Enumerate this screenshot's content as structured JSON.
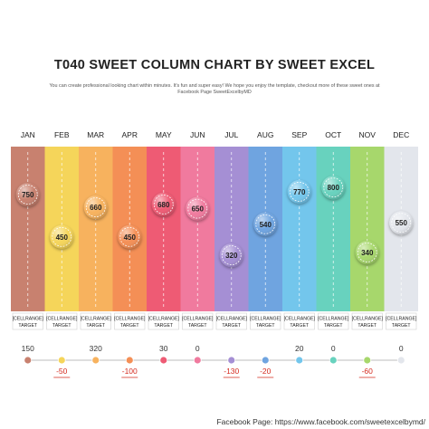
{
  "title": "T040 SWEET COLUMN CHART BY SWEET EXCEL",
  "subtitle_line1": "You can create professional looking chart within minutes. It's fun and super easy! We hope you enjoy the template, checkout more of these sweet ones at",
  "subtitle_line2": "Facebook Page SweetExcelbyMD",
  "footer": "Facebook Page: https://www.facebook.com/sweetexcelbymd/",
  "colors": {
    "columns": [
      "#c8816f",
      "#f5d55a",
      "#f7b25e",
      "#f48f56",
      "#ee5b74",
      "#f07a9e",
      "#a58fd4",
      "#6fa4e0",
      "#73c6ec",
      "#68d2be",
      "#a7d76c",
      "#e3e6ec"
    ],
    "positive": "#333333",
    "negative": "#d42a1e"
  },
  "chart_data": {
    "type": "bar",
    "categories": [
      "JAN",
      "FEB",
      "MAR",
      "APR",
      "MAY",
      "JUN",
      "JUL",
      "AUG",
      "SEP",
      "OCT",
      "NOV",
      "DEC"
    ],
    "values": [
      750,
      450,
      660,
      450,
      680,
      650,
      320,
      540,
      770,
      800,
      340,
      550
    ],
    "targets": [
      "[CELLRANGE]",
      "[CELLRANGE]",
      "[CELLRANGE]",
      "[CELLRANGE]",
      "[CELLRANGE]",
      "[CELLRANGE]",
      "[CELLRANGE]",
      "[CELLRANGE]",
      "[CELLRANGE]",
      "[CELLRANGE]",
      "[CELLRANGE]",
      "[CELLRANGE]"
    ],
    "target_label": "TARGET",
    "variance": [
      150,
      -50,
      320,
      -100,
      30,
      0,
      -130,
      -20,
      20,
      0,
      -60,
      0
    ],
    "ylim": [
      0,
      1000
    ],
    "grid": false,
    "legend": "none"
  }
}
